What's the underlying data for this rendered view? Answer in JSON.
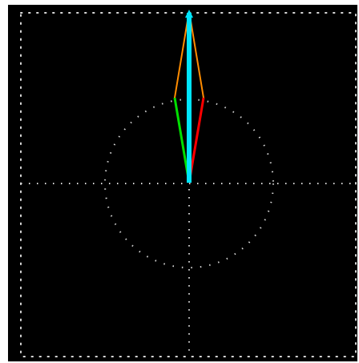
{
  "colors": {
    "background": "#000000",
    "frame": "#ffffff",
    "grid_dots": "#d8d8d8",
    "circle_dots": "#d0d0d0",
    "outline": "#ff8c00",
    "left_edge": "#00e000",
    "right_edge": "#ff0000",
    "center_axis": "#00e5ff"
  },
  "icons": [
    "dotted-frame",
    "dotted-crosshair",
    "dotted-circle",
    "needle-glyph"
  ]
}
